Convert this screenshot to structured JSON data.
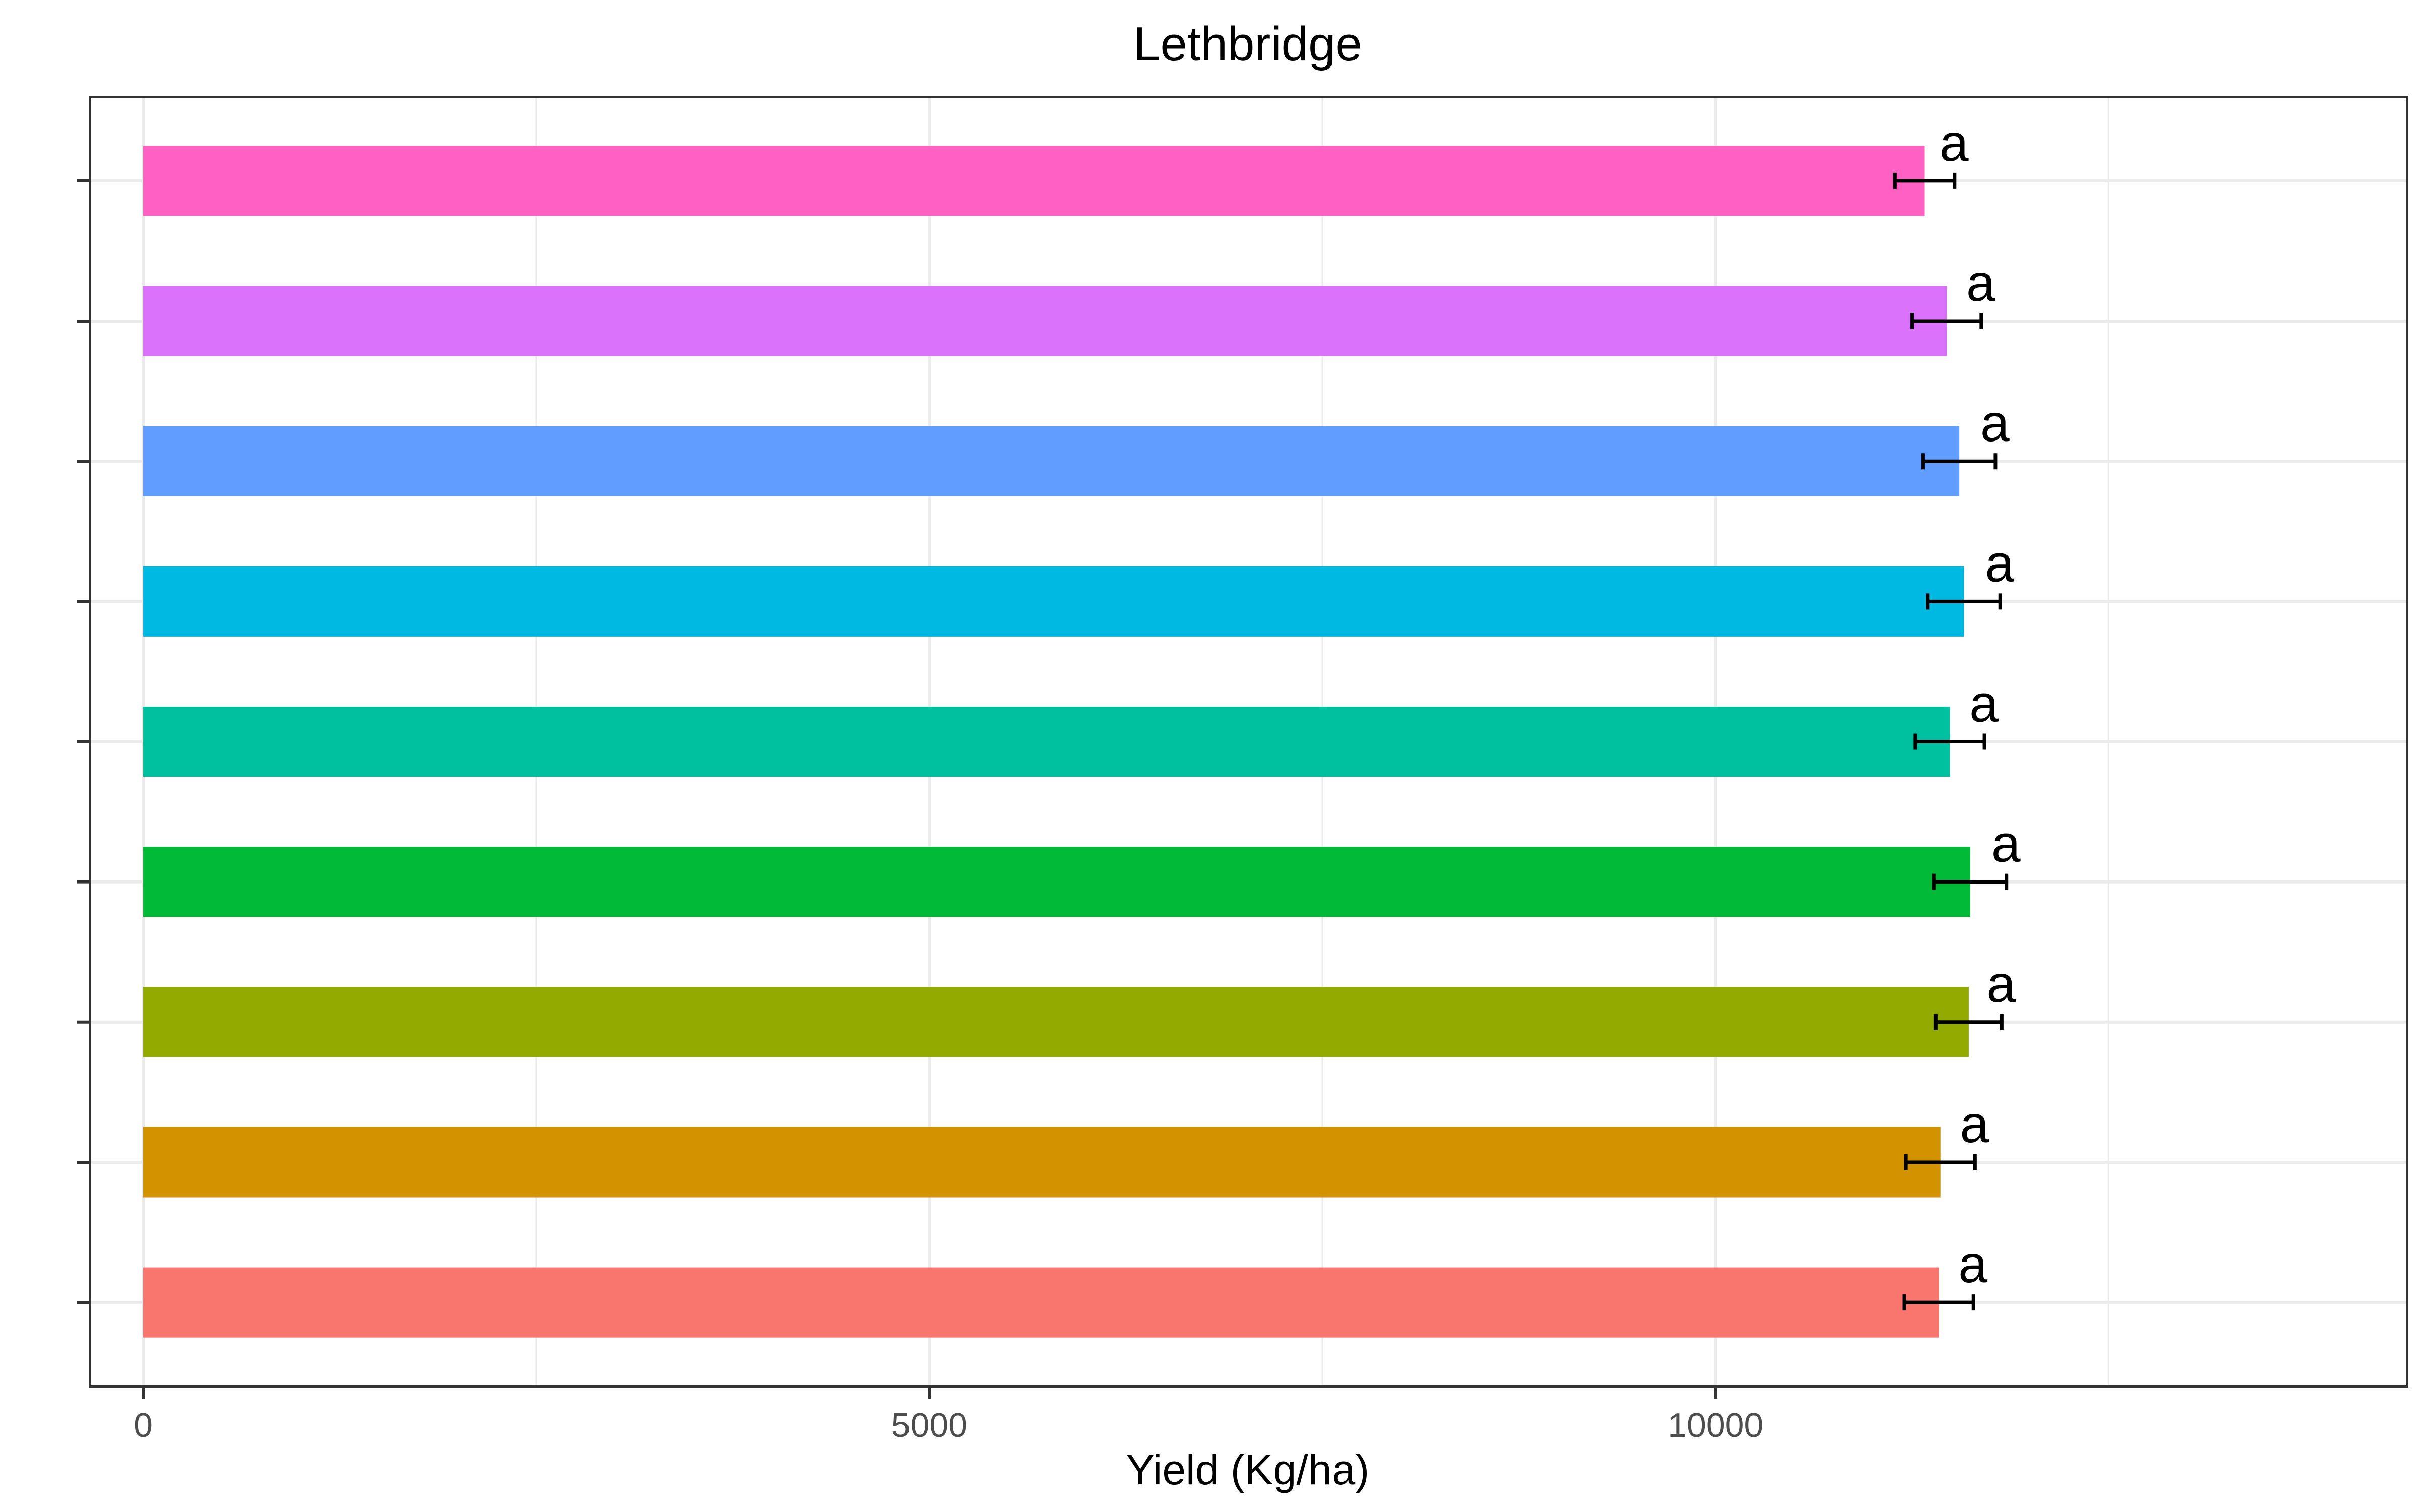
{
  "chart_data": {
    "type": "bar",
    "orientation": "horizontal",
    "title": "Lethbridge",
    "xlabel": "Yield (Kg/ha)",
    "ylabel": "",
    "xlim": [
      -340,
      14400
    ],
    "x_ticks": [
      0,
      5000,
      10000
    ],
    "grid": true,
    "legend": "none",
    "series": [
      {
        "values": [
          11420,
          11430,
          11610,
          11620,
          11490,
          11580,
          11550,
          11470,
          11330
        ],
        "errors": [
          220,
          220,
          210,
          230,
          220,
          230,
          230,
          220,
          190
        ],
        "labels": [
          "a",
          "a",
          "a",
          "a",
          "a",
          "a",
          "a",
          "a",
          "a"
        ],
        "colors": [
          "#F8766D",
          "#D39200",
          "#93AA00",
          "#00BA38",
          "#00C19F",
          "#00B9E3",
          "#619CFF",
          "#DB72FB",
          "#FF61C3"
        ]
      }
    ]
  }
}
